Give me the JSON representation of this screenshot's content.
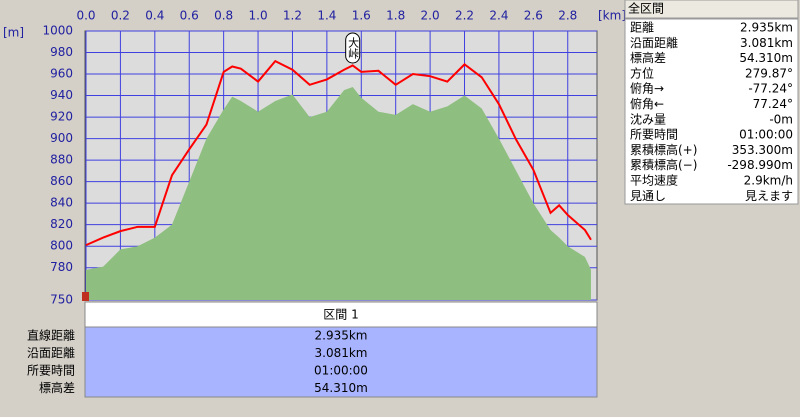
{
  "chart_data": {
    "type": "line",
    "x_label": "[km]",
    "y_label": "[m]",
    "annotation": "大峠",
    "annotation_x": 1.55,
    "x": [
      0,
      0.1,
      0.2,
      0.3,
      0.4,
      0.5,
      0.6,
      0.7,
      0.8,
      0.85,
      0.9,
      1.0,
      1.1,
      1.2,
      1.3,
      1.4,
      1.5,
      1.55,
      1.6,
      1.7,
      1.8,
      1.9,
      2.0,
      2.1,
      2.2,
      2.3,
      2.4,
      2.5,
      2.6,
      2.7,
      2.75,
      2.8,
      2.9,
      2.935
    ],
    "series": [
      {
        "name": "terrain",
        "color": "#8fbf80",
        "fill": true,
        "values": [
          778,
          781,
          797,
          800,
          808,
          820,
          860,
          900,
          927,
          939,
          935,
          925,
          935,
          941,
          920,
          925,
          945,
          948,
          938,
          925,
          922,
          932,
          925,
          930,
          940,
          928,
          900,
          870,
          840,
          815,
          808,
          800,
          790,
          778
        ]
      },
      {
        "name": "route",
        "color": "#ff0000",
        "fill": false,
        "values": [
          801,
          808,
          814,
          818,
          818,
          866,
          890,
          913,
          962,
          967,
          965,
          953,
          972,
          964,
          950,
          955,
          964,
          968,
          962,
          963,
          950,
          960,
          958,
          953,
          969,
          957,
          932,
          899,
          871,
          831,
          838,
          829,
          815,
          806
        ]
      }
    ],
    "xlim": [
      0,
      2.97
    ],
    "ylim": [
      750,
      1000
    ],
    "xticks": [
      {
        "value": 0,
        "label": "0.0"
      },
      0.2,
      0.4,
      0.6,
      0.8,
      {
        "value": 1,
        "label": "1.0"
      },
      1.2,
      1.4,
      1.6,
      1.8,
      {
        "value": 2,
        "label": "2.0"
      },
      2.2,
      2.4,
      2.6,
      2.8
    ],
    "yticks": [
      750,
      780,
      800,
      820,
      840,
      860,
      880,
      900,
      920,
      940,
      960,
      980,
      1000
    ],
    "grid": true
  },
  "summary_panel": {
    "title": "全区間",
    "rows": [
      [
        "距離",
        "2.935km"
      ],
      [
        "沿面距離",
        "3.081km"
      ],
      [
        "標高差",
        "54.310m"
      ],
      [
        "方位",
        "279.87°"
      ],
      [
        "俯角→",
        "-77.24°"
      ],
      [
        "俯角←",
        "77.24°"
      ],
      [
        "沈み量",
        "-0m"
      ],
      [
        "所要時間",
        "01:00:00"
      ],
      [
        "累積標高(+)",
        "353.300m"
      ],
      [
        "累積標高(−)",
        "-298.990m"
      ],
      [
        "平均速度",
        "2.9km/h"
      ],
      [
        "見通し",
        "見えます"
      ]
    ]
  },
  "section_table": {
    "header": "区間 1",
    "rows": [
      [
        "直線距離",
        "2.935km"
      ],
      [
        "沿面距離",
        "3.081km"
      ],
      [
        "所要時間",
        "01:00:00"
      ],
      [
        "標高差",
        "54.310m"
      ]
    ]
  }
}
